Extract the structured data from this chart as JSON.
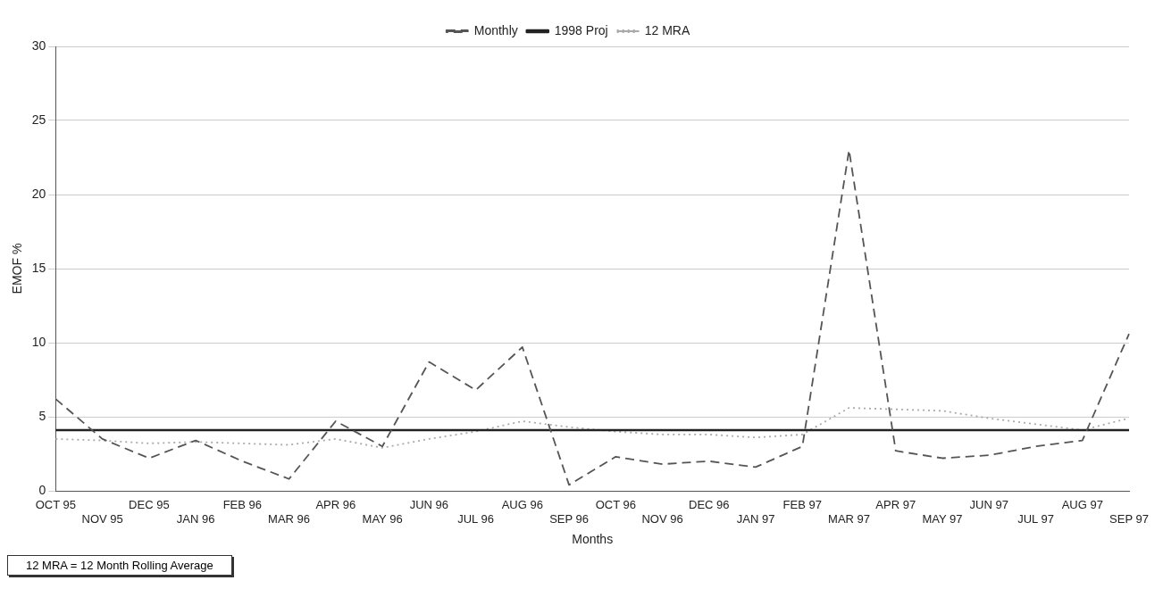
{
  "chart_data": {
    "type": "line",
    "xlabel": "Months",
    "ylabel": "EMOF %",
    "categories": [
      "OCT 95",
      "NOV 95",
      "DEC 95",
      "JAN 96",
      "FEB 96",
      "MAR 96",
      "APR 96",
      "MAY 96",
      "JUN 96",
      "JUL 96",
      "AUG 96",
      "SEP 96",
      "OCT 96",
      "NOV 96",
      "DEC 96",
      "JAN 97",
      "FEB 97",
      "MAR 97",
      "APR 97",
      "MAY 97",
      "JUN 97",
      "JUL 97",
      "AUG 97",
      "SEP 97"
    ],
    "series": [
      {
        "name": "Monthly",
        "color": "#555555",
        "line_style": "dashed",
        "values": [
          6.2,
          3.5,
          2.2,
          3.4,
          2.0,
          0.8,
          4.7,
          3.0,
          8.7,
          6.8,
          9.7,
          0.4,
          2.3,
          1.8,
          2.0,
          1.6,
          3.0,
          23.0,
          2.7,
          2.2,
          2.4,
          3.0,
          3.4,
          10.6
        ]
      },
      {
        "name": "1998 Proj",
        "color": "#222222",
        "line_style": "solid",
        "values": [
          4.1,
          4.1,
          4.1,
          4.1,
          4.1,
          4.1,
          4.1,
          4.1,
          4.1,
          4.1,
          4.1,
          4.1,
          4.1,
          4.1,
          4.1,
          4.1,
          4.1,
          4.1,
          4.1,
          4.1,
          4.1,
          4.1,
          4.1,
          4.1
        ]
      },
      {
        "name": "12 MRA",
        "color": "#aaaaaa",
        "line_style": "dotted",
        "values": [
          3.5,
          3.4,
          3.2,
          3.3,
          3.2,
          3.1,
          3.5,
          2.9,
          3.5,
          4.0,
          4.7,
          4.3,
          4.0,
          3.8,
          3.8,
          3.6,
          3.8,
          5.6,
          5.5,
          5.4,
          4.9,
          4.5,
          4.1,
          4.9
        ]
      }
    ],
    "ylim": [
      0,
      30
    ],
    "yticks": [
      0,
      5,
      10,
      15,
      20,
      25,
      30
    ],
    "grid": "y",
    "legend": "top",
    "marker": "none",
    "annotations": [
      "12 MRA = 12 Month Rolling Average"
    ]
  }
}
